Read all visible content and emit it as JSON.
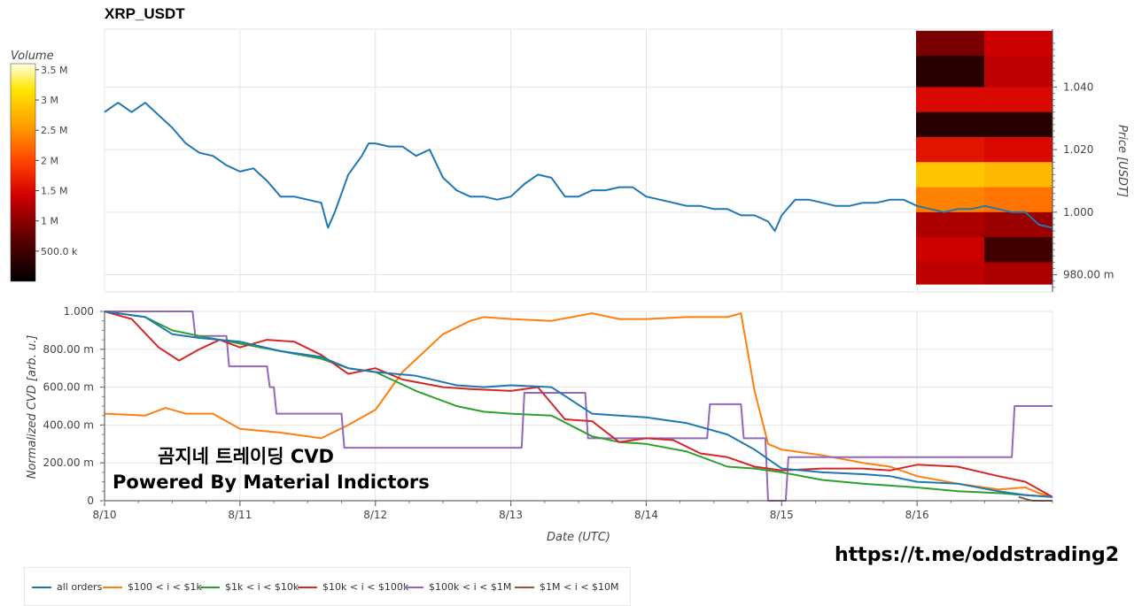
{
  "title": "XRP_USDT",
  "watermark": {
    "line1": "곰지네 트레이딩 CVD",
    "line2": "Powered By Material Indictors"
  },
  "url_text": "https://t.me/oddstrading2",
  "colorbar": {
    "title": "Volume",
    "ticks": [
      "3.5 M",
      "3 M",
      "2.5 M",
      "2 M",
      "1.5 M",
      "1 M",
      "500.0 k"
    ],
    "tick_values": [
      3500000,
      3000000,
      2500000,
      2000000,
      1500000,
      1000000,
      500000
    ],
    "range": [
      0,
      3600000
    ]
  },
  "colors": {
    "price_line": "#1f77b4",
    "all_orders": "#1f77b4",
    "s100_1k": "#ff7f0e",
    "s1k_10k": "#2ca02c",
    "s10k_100k": "#d62728",
    "s100k_1m": "#9467bd",
    "s1m_10m": "#8c564b",
    "grid": "#e5e5e5"
  },
  "legend": [
    {
      "label": "all orders",
      "color": "#1f77b4"
    },
    {
      "label": "$100 < i < $1k",
      "color": "#ff7f0e"
    },
    {
      "label": "$1k < i < $10k",
      "color": "#2ca02c"
    },
    {
      "label": "$10k < i < $100k",
      "color": "#d62728"
    },
    {
      "label": "$100k < i < $1M",
      "color": "#9467bd"
    },
    {
      "label": "$1M < i < $10M",
      "color": "#8c564b"
    }
  ],
  "chart_data": [
    {
      "type": "line",
      "title": "XRP_USDT",
      "ylabel": "Price [USDT]",
      "yticks": [
        "1.040",
        "1.020",
        "1.000",
        "980.00 m"
      ],
      "ytick_values": [
        1.04,
        1.02,
        1.0,
        0.98
      ],
      "ylim": [
        0.9745,
        1.0585
      ],
      "xlim": [
        0,
        7
      ],
      "grid": true,
      "series": [
        {
          "x": [
            0,
            0.1,
            0.2,
            0.3,
            0.4,
            0.5,
            0.6,
            0.7,
            0.8,
            0.9,
            1.0,
            1.1,
            1.2,
            1.3,
            1.4,
            1.5,
            1.6,
            1.65,
            1.7,
            1.8,
            1.9,
            1.95,
            2.0,
            2.1,
            2.2,
            2.3,
            2.4,
            2.5,
            2.6,
            2.7,
            2.8,
            2.9,
            3.0,
            3.1,
            3.2,
            3.3,
            3.4,
            3.5,
            3.6,
            3.7,
            3.8,
            3.9,
            4.0,
            4.1,
            4.2,
            4.3,
            4.4,
            4.5,
            4.6,
            4.7,
            4.8,
            4.9,
            4.95,
            5.0,
            5.1,
            5.2,
            5.3,
            5.4,
            5.5,
            5.6,
            5.7,
            5.8,
            5.9,
            6.0,
            6.1,
            6.2,
            6.3,
            6.4,
            6.5,
            6.6,
            6.7,
            6.8,
            6.9,
            7.0
          ],
          "y": [
            1.032,
            1.035,
            1.032,
            1.035,
            1.031,
            1.027,
            1.022,
            1.019,
            1.018,
            1.015,
            1.013,
            1.014,
            1.01,
            1.005,
            1.005,
            1.004,
            1.003,
            0.995,
            1.0,
            1.012,
            1.018,
            1.022,
            1.022,
            1.021,
            1.021,
            1.018,
            1.02,
            1.011,
            1.007,
            1.005,
            1.005,
            1.004,
            1.005,
            1.009,
            1.012,
            1.011,
            1.005,
            1.005,
            1.007,
            1.007,
            1.008,
            1.008,
            1.005,
            1.004,
            1.003,
            1.002,
            1.002,
            1.001,
            1.001,
            0.999,
            0.999,
            0.997,
            0.994,
            0.999,
            1.004,
            1.004,
            1.003,
            1.002,
            1.002,
            1.003,
            1.003,
            1.004,
            1.004,
            1.002,
            1.001,
            1.0,
            1.001,
            1.001,
            1.002,
            1.001,
            1.0,
            1.0,
            0.996,
            0.995
          ]
        }
      ]
    },
    {
      "type": "heatmap",
      "title": "Volume",
      "price_bands": [
        1.058,
        1.05,
        1.04,
        1.032,
        1.024,
        1.016,
        1.008,
        1.0,
        0.992,
        0.984,
        0.977
      ],
      "columns": 2,
      "values": [
        [
          900000,
          1400000
        ],
        [
          300000,
          1300000
        ],
        [
          1500000,
          1500000
        ],
        [
          300000,
          300000
        ],
        [
          1600000,
          1500000
        ],
        [
          2900000,
          2800000
        ],
        [
          2400000,
          2300000
        ],
        [
          1200000,
          1100000
        ],
        [
          1400000,
          500000
        ],
        [
          1300000,
          1200000
        ]
      ]
    },
    {
      "type": "line",
      "xlabel": "Date (UTC)",
      "ylabel": "Normalized CVD [arb. u.]",
      "xticks": [
        "8/10",
        "8/11",
        "8/12",
        "8/13",
        "8/14",
        "8/15",
        "8/16"
      ],
      "xtick_values": [
        0,
        1,
        2,
        3,
        4,
        5,
        6
      ],
      "yticks": [
        "1.000",
        "800.00 m",
        "600.00 m",
        "400.00 m",
        "200.00 m",
        "0"
      ],
      "ytick_values": [
        1.0,
        0.8,
        0.6,
        0.4,
        0.2,
        0
      ],
      "xlim": [
        0,
        7
      ],
      "ylim": [
        0,
        1.0
      ],
      "grid": true,
      "legend_position": "bottom",
      "series": [
        {
          "name": "all orders",
          "x": [
            0,
            0.3,
            0.5,
            0.7,
            1.0,
            1.3,
            1.6,
            1.8,
            2.0,
            2.3,
            2.6,
            2.8,
            3.0,
            3.3,
            3.6,
            3.8,
            4.0,
            4.3,
            4.6,
            4.8,
            5.0,
            5.3,
            5.6,
            5.8,
            6.0,
            6.3,
            6.6,
            6.8,
            7.0
          ],
          "y": [
            1.0,
            0.97,
            0.88,
            0.86,
            0.84,
            0.79,
            0.76,
            0.7,
            0.68,
            0.66,
            0.61,
            0.6,
            0.61,
            0.6,
            0.46,
            0.45,
            0.44,
            0.41,
            0.35,
            0.27,
            0.17,
            0.15,
            0.14,
            0.13,
            0.1,
            0.09,
            0.05,
            0.03,
            0.02
          ]
        },
        {
          "name": "$100 < i < $1k",
          "x": [
            0,
            0.3,
            0.45,
            0.6,
            0.8,
            1.0,
            1.3,
            1.6,
            1.8,
            2.0,
            2.2,
            2.5,
            2.7,
            2.8,
            3.0,
            3.3,
            3.6,
            3.8,
            4.0,
            4.3,
            4.6,
            4.7,
            4.8,
            4.9,
            5.0,
            5.3,
            5.6,
            5.8,
            6.0,
            6.3,
            6.6,
            6.8,
            6.9,
            7.0
          ],
          "y": [
            0.46,
            0.45,
            0.49,
            0.46,
            0.46,
            0.38,
            0.36,
            0.33,
            0.4,
            0.48,
            0.68,
            0.88,
            0.95,
            0.97,
            0.96,
            0.95,
            0.99,
            0.96,
            0.96,
            0.97,
            0.97,
            0.99,
            0.58,
            0.3,
            0.27,
            0.24,
            0.2,
            0.18,
            0.13,
            0.09,
            0.06,
            0.07,
            0.04,
            0.02
          ]
        },
        {
          "name": "$1k < i < $10k",
          "x": [
            0,
            0.3,
            0.5,
            0.7,
            1.0,
            1.3,
            1.6,
            1.8,
            2.0,
            2.3,
            2.6,
            2.8,
            3.0,
            3.3,
            3.6,
            3.8,
            4.0,
            4.3,
            4.6,
            4.8,
            5.0,
            5.3,
            5.6,
            5.8,
            6.0,
            6.3,
            6.6,
            6.8,
            7.0
          ],
          "y": [
            1.0,
            0.97,
            0.9,
            0.87,
            0.83,
            0.79,
            0.75,
            0.7,
            0.68,
            0.58,
            0.5,
            0.47,
            0.46,
            0.45,
            0.34,
            0.31,
            0.3,
            0.26,
            0.18,
            0.17,
            0.15,
            0.11,
            0.09,
            0.08,
            0.07,
            0.05,
            0.04,
            0.03,
            0.02
          ]
        },
        {
          "name": "$10k < i < $100k",
          "x": [
            0,
            0.2,
            0.4,
            0.55,
            0.7,
            0.85,
            1.0,
            1.2,
            1.4,
            1.6,
            1.8,
            2.0,
            2.2,
            2.5,
            2.7,
            3.0,
            3.2,
            3.4,
            3.6,
            3.8,
            4.0,
            4.2,
            4.4,
            4.6,
            4.8,
            5.0,
            5.3,
            5.6,
            5.8,
            6.0,
            6.3,
            6.6,
            6.8,
            7.0
          ],
          "y": [
            1.0,
            0.96,
            0.81,
            0.74,
            0.8,
            0.85,
            0.81,
            0.85,
            0.84,
            0.77,
            0.67,
            0.7,
            0.64,
            0.6,
            0.59,
            0.58,
            0.6,
            0.43,
            0.42,
            0.31,
            0.33,
            0.32,
            0.25,
            0.23,
            0.18,
            0.16,
            0.17,
            0.17,
            0.16,
            0.19,
            0.18,
            0.13,
            0.1,
            0.02
          ]
        },
        {
          "name": "$100k < i < $1M",
          "x": [
            0,
            0.65,
            0.67,
            0.9,
            0.92,
            1.2,
            1.22,
            1.25,
            1.27,
            1.75,
            1.77,
            3.08,
            3.1,
            3.55,
            3.57,
            4.45,
            4.47,
            4.7,
            4.72,
            4.88,
            4.9,
            5.03,
            5.05,
            6.7,
            6.72,
            7.0
          ],
          "y": [
            1.0,
            1.0,
            0.87,
            0.87,
            0.71,
            0.71,
            0.6,
            0.6,
            0.46,
            0.46,
            0.28,
            0.28,
            0.57,
            0.57,
            0.33,
            0.33,
            0.51,
            0.51,
            0.33,
            0.33,
            0.0,
            0.0,
            0.23,
            0.23,
            0.5,
            0.5
          ]
        },
        {
          "name": "$1M < i < $10M",
          "x": [
            6.75,
            6.8,
            6.85,
            7.0
          ],
          "y": [
            0.02,
            0.01,
            0.0,
            0.0
          ]
        }
      ]
    }
  ]
}
